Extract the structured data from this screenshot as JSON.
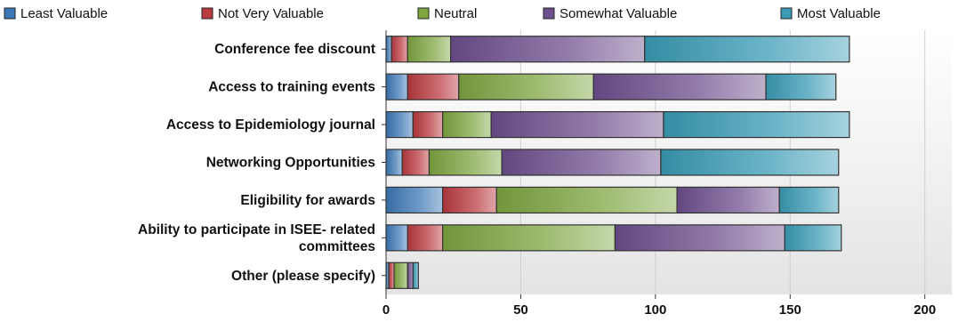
{
  "chart_data": {
    "type": "bar",
    "orientation": "horizontal",
    "stacked": true,
    "categories": [
      "Conference fee discount",
      "Access to training events",
      "Access to Epidemiology journal",
      "Networking Opportunities",
      "Eligibility for awards",
      "Ability to participate in ISEE- related committees",
      "Other (please specify)"
    ],
    "category_lines": [
      [
        "Conference fee discount"
      ],
      [
        "Access to training events"
      ],
      [
        "Access to Epidemiology journal"
      ],
      [
        "Networking Opportunities"
      ],
      [
        "Eligibility for awards"
      ],
      [
        "Ability to participate in ISEE- related",
        "committees"
      ],
      [
        "Other (please specify)"
      ]
    ],
    "series": [
      {
        "name": "Least Valuable",
        "color": "#3d78b6",
        "values": [
          2,
          8,
          10,
          6,
          21,
          8,
          1
        ]
      },
      {
        "name": "Not Very Valuable",
        "color": "#b93a3f",
        "values": [
          6,
          19,
          11,
          10,
          20,
          13,
          2
        ]
      },
      {
        "name": "Neutral",
        "color": "#7fa541",
        "values": [
          16,
          50,
          18,
          27,
          67,
          64,
          5
        ]
      },
      {
        "name": "Somewhat Valuable",
        "color": "#6e4f8e",
        "values": [
          72,
          64,
          64,
          59,
          38,
          63,
          2
        ]
      },
      {
        "name": "Most Valuable",
        "color": "#3a9bb5",
        "values": [
          76,
          26,
          69,
          66,
          22,
          21,
          2
        ]
      }
    ],
    "xlim": [
      0,
      210
    ],
    "xticks": [
      0,
      50,
      100,
      150,
      200
    ],
    "xlabel": "",
    "ylabel": "",
    "grid": "vertical",
    "legend": "top"
  }
}
